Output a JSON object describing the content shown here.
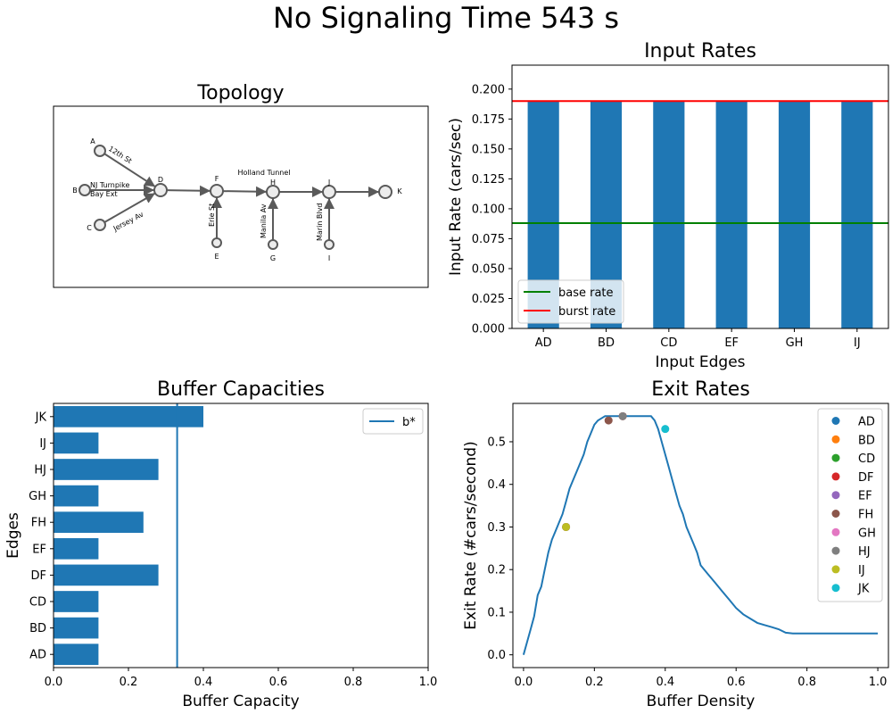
{
  "figure": {
    "suptitle": "No Signaling Time 543 s"
  },
  "colors": {
    "bar": "#1f77b4",
    "base_rate": "#008000",
    "burst_rate": "#ff0000",
    "line": "#1f77b4",
    "diagram_gray": "#5a5a5a"
  },
  "chart_data": [
    {
      "id": "topology",
      "type": "diagram",
      "title": "Topology",
      "nodes": [
        {
          "id": "A",
          "label": "A"
        },
        {
          "id": "B",
          "label": "B"
        },
        {
          "id": "C",
          "label": "C"
        },
        {
          "id": "D",
          "label": "D"
        },
        {
          "id": "E",
          "label": "E"
        },
        {
          "id": "F",
          "label": "F"
        },
        {
          "id": "G",
          "label": "G"
        },
        {
          "id": "H",
          "label": "H"
        },
        {
          "id": "I",
          "label": "I"
        },
        {
          "id": "J",
          "label": "J"
        },
        {
          "id": "K",
          "label": "K"
        }
      ],
      "edges": [
        {
          "from": "A",
          "to": "D",
          "label": "12th St"
        },
        {
          "from": "B",
          "to": "D",
          "label": "NJ Turnpike Bay Ext"
        },
        {
          "from": "C",
          "to": "D",
          "label": "Jersey Av"
        },
        {
          "from": "D",
          "to": "F",
          "label": ""
        },
        {
          "from": "E",
          "to": "F",
          "label": "Erie St"
        },
        {
          "from": "F",
          "to": "H",
          "label": "Holland Tunnel"
        },
        {
          "from": "G",
          "to": "H",
          "label": "Manila Av"
        },
        {
          "from": "H",
          "to": "J",
          "label": ""
        },
        {
          "from": "I",
          "to": "J",
          "label": "Marin Blvd"
        },
        {
          "from": "J",
          "to": "K",
          "label": ""
        }
      ]
    },
    {
      "id": "input_rates",
      "type": "bar",
      "title": "Input Rates",
      "xlabel": "Input Edges",
      "ylabel": "Input Rate (cars/sec)",
      "categories": [
        "AD",
        "BD",
        "CD",
        "EF",
        "GH",
        "IJ"
      ],
      "values": [
        0.19,
        0.19,
        0.19,
        0.19,
        0.19,
        0.19
      ],
      "ylim": [
        0,
        0.22
      ],
      "yticks": [
        "0.000",
        "0.025",
        "0.050",
        "0.075",
        "0.100",
        "0.125",
        "0.150",
        "0.175",
        "0.200"
      ],
      "hlines": [
        {
          "name": "base rate",
          "value": 0.088,
          "color": "#008000"
        },
        {
          "name": "burst rate",
          "value": 0.19,
          "color": "#ff0000"
        }
      ],
      "legend": "lower-left"
    },
    {
      "id": "buffer_capacities",
      "type": "barh",
      "title": "Buffer Capacities",
      "xlabel": "Buffer Capacity",
      "ylabel": "Edges",
      "categories": [
        "AD",
        "BD",
        "CD",
        "DF",
        "EF",
        "FH",
        "GH",
        "HJ",
        "IJ",
        "JK"
      ],
      "values": [
        0.12,
        0.12,
        0.12,
        0.28,
        0.12,
        0.24,
        0.12,
        0.28,
        0.12,
        0.4
      ],
      "xlim": [
        0,
        1.0
      ],
      "xticks": [
        "0.0",
        "0.2",
        "0.4",
        "0.6",
        "0.8",
        "1.0"
      ],
      "vline": {
        "name": "b*",
        "value": 0.33
      },
      "legend": "top-right"
    },
    {
      "id": "exit_rates",
      "type": "line",
      "title": "Exit Rates",
      "xlabel": "Buffer Density",
      "ylabel": "Exit Rate (#cars/second)",
      "xlim": [
        -0.03,
        1.03
      ],
      "ylim": [
        -0.03,
        0.59
      ],
      "xticks": [
        "0.0",
        "0.2",
        "0.4",
        "0.6",
        "0.8",
        "1.0"
      ],
      "yticks": [
        "0.0",
        "0.1",
        "0.2",
        "0.3",
        "0.4",
        "0.5"
      ],
      "curve": {
        "x": [
          0.0,
          0.01,
          0.02,
          0.03,
          0.04,
          0.05,
          0.06,
          0.07,
          0.08,
          0.09,
          0.1,
          0.11,
          0.12,
          0.13,
          0.14,
          0.15,
          0.16,
          0.17,
          0.18,
          0.19,
          0.2,
          0.21,
          0.22,
          0.23,
          0.24,
          0.26,
          0.28,
          0.3,
          0.32,
          0.34,
          0.36,
          0.37,
          0.38,
          0.39,
          0.4,
          0.41,
          0.42,
          0.43,
          0.44,
          0.45,
          0.46,
          0.47,
          0.48,
          0.49,
          0.5,
          0.52,
          0.54,
          0.56,
          0.58,
          0.6,
          0.62,
          0.64,
          0.66,
          0.68,
          0.7,
          0.72,
          0.74,
          0.76,
          0.8,
          0.9,
          1.0
        ],
        "y": [
          0.0,
          0.03,
          0.06,
          0.09,
          0.14,
          0.16,
          0.2,
          0.24,
          0.27,
          0.29,
          0.31,
          0.33,
          0.36,
          0.39,
          0.41,
          0.43,
          0.45,
          0.47,
          0.5,
          0.52,
          0.54,
          0.55,
          0.555,
          0.56,
          0.56,
          0.56,
          0.56,
          0.56,
          0.56,
          0.56,
          0.56,
          0.55,
          0.53,
          0.5,
          0.47,
          0.44,
          0.41,
          0.38,
          0.35,
          0.33,
          0.3,
          0.28,
          0.26,
          0.24,
          0.21,
          0.19,
          0.17,
          0.15,
          0.13,
          0.11,
          0.095,
          0.085,
          0.075,
          0.07,
          0.065,
          0.06,
          0.052,
          0.05,
          0.05,
          0.05,
          0.05
        ]
      },
      "points": [
        {
          "name": "AD",
          "x": 0.12,
          "y": 0.3,
          "color": "#1f77b4"
        },
        {
          "name": "BD",
          "x": 0.12,
          "y": 0.3,
          "color": "#ff7f0e"
        },
        {
          "name": "CD",
          "x": 0.12,
          "y": 0.3,
          "color": "#2ca02c"
        },
        {
          "name": "DF",
          "x": 0.28,
          "y": 0.56,
          "color": "#d62728"
        },
        {
          "name": "EF",
          "x": 0.12,
          "y": 0.3,
          "color": "#9467bd"
        },
        {
          "name": "FH",
          "x": 0.24,
          "y": 0.55,
          "color": "#8c564b"
        },
        {
          "name": "GH",
          "x": 0.12,
          "y": 0.3,
          "color": "#e377c2"
        },
        {
          "name": "HJ",
          "x": 0.28,
          "y": 0.56,
          "color": "#7f7f7f"
        },
        {
          "name": "IJ",
          "x": 0.12,
          "y": 0.3,
          "color": "#bcbd22"
        },
        {
          "name": "JK",
          "x": 0.4,
          "y": 0.53,
          "color": "#17becf"
        }
      ],
      "legend": "top-right"
    }
  ]
}
